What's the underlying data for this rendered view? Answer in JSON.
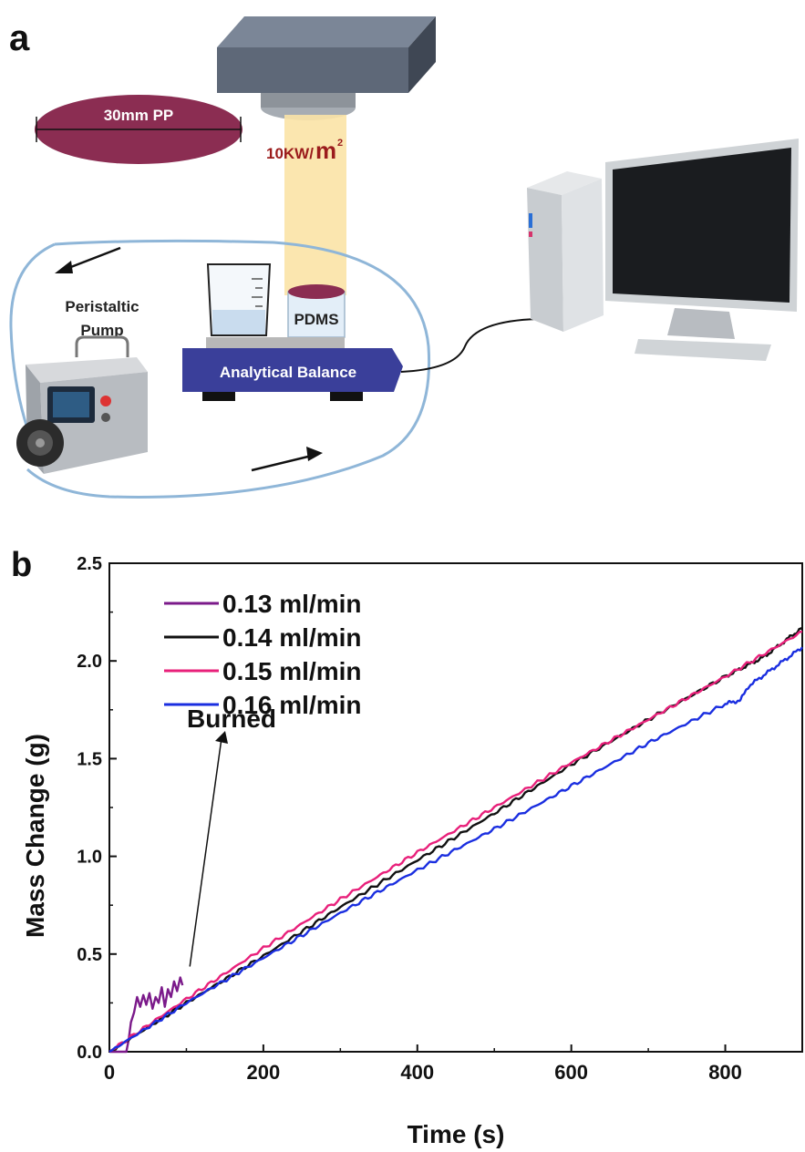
{
  "panel_a": {
    "label": "a",
    "disc_label": "30mm   PP",
    "irradiance_prefix": "10KW/",
    "irradiance_unit": "m",
    "irradiance_exp": "2",
    "pump_label_line1": "Peristaltic",
    "pump_label_line2": "Pump",
    "sample_label": "PDMS",
    "balance_label": "Analytical Balance",
    "colors": {
      "disc": "#8b2d52",
      "beam": "#fbe3a6",
      "balance": "#3a3f9a",
      "tube": "#8fb6d8",
      "irradiance": "#9b1c1c"
    }
  },
  "panel_b": {
    "label": "b"
  },
  "chart_data": {
    "type": "line",
    "xlabel": "Time (s)",
    "ylabel": "Mass Change (g)",
    "xlim": [
      0,
      900
    ],
    "ylim": [
      0,
      2.5
    ],
    "xticks": [
      0,
      200,
      400,
      600,
      800
    ],
    "yticks": [
      0.0,
      0.5,
      1.0,
      1.5,
      2.0,
      2.5
    ],
    "xtick_labels": [
      "0",
      "200",
      "400",
      "600",
      "800"
    ],
    "ytick_labels": [
      "0.0",
      "0.5",
      "1.0",
      "1.5",
      "2.0",
      "2.5"
    ],
    "legend_position": "top-left",
    "annotation": {
      "text": "Burned",
      "target_x": 95,
      "target_y": 0.38
    },
    "series": [
      {
        "name": "0.13 ml/min",
        "color": "#7b1a8a",
        "x": [
          0,
          22,
          25,
          28,
          32,
          36,
          40,
          44,
          48,
          52,
          56,
          60,
          64,
          68,
          72,
          76,
          80,
          84,
          88,
          92,
          95
        ],
        "y": [
          0.0,
          0.0,
          0.06,
          0.15,
          0.2,
          0.28,
          0.23,
          0.29,
          0.24,
          0.3,
          0.22,
          0.28,
          0.25,
          0.33,
          0.23,
          0.32,
          0.28,
          0.36,
          0.31,
          0.38,
          0.34
        ]
      },
      {
        "name": "0.14 ml/min",
        "color": "#111111",
        "x": [
          0,
          100,
          200,
          300,
          400,
          500,
          600,
          700,
          800,
          850,
          900
        ],
        "y": [
          0.0,
          0.25,
          0.49,
          0.74,
          0.98,
          1.22,
          1.47,
          1.7,
          1.92,
          2.02,
          2.17
        ]
      },
      {
        "name": "0.15 ml/min",
        "color": "#e8207a",
        "x": [
          0,
          100,
          200,
          300,
          400,
          500,
          600,
          700,
          800,
          900
        ],
        "y": [
          0.0,
          0.27,
          0.53,
          0.78,
          1.02,
          1.25,
          1.48,
          1.7,
          1.92,
          2.15
        ]
      },
      {
        "name": "0.16 ml/min",
        "color": "#1a2ee0",
        "x": [
          0,
          100,
          200,
          300,
          400,
          500,
          600,
          700,
          800,
          820,
          830,
          900
        ],
        "y": [
          0.0,
          0.25,
          0.48,
          0.71,
          0.93,
          1.14,
          1.36,
          1.58,
          1.78,
          1.8,
          1.87,
          2.07
        ]
      }
    ]
  }
}
